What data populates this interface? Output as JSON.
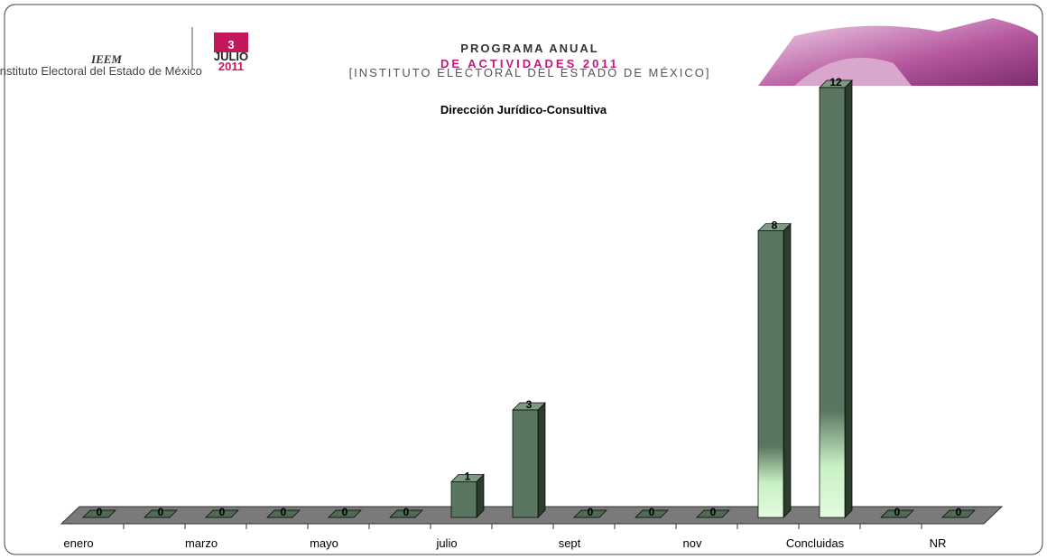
{
  "header": {
    "logo": "IEEM",
    "logo_caption": "Instituto Electoral del Estado de México",
    "date_day": "3",
    "date_month": "JULIO",
    "date_year": "2011",
    "program_title": "PROGRAMA ANUAL",
    "program_subtitle": "DE ACTIVIDADES 2011",
    "institute": "[INSTITUTO ELECTORAL DEL ESTADO DE MÉXICO]"
  },
  "chart_data": {
    "type": "bar3d",
    "title": "Dirección Jurídico-Consultiva",
    "categories": [
      "enero",
      null,
      "marzo",
      null,
      "mayo",
      null,
      "julio",
      null,
      "sept",
      null,
      "nov",
      null,
      "Concluidas",
      null,
      "NR"
    ],
    "values": [
      0,
      0,
      0,
      0,
      0,
      0,
      1,
      3,
      0,
      0,
      0,
      8,
      12,
      0,
      0
    ],
    "color": "#5a7560"
  }
}
